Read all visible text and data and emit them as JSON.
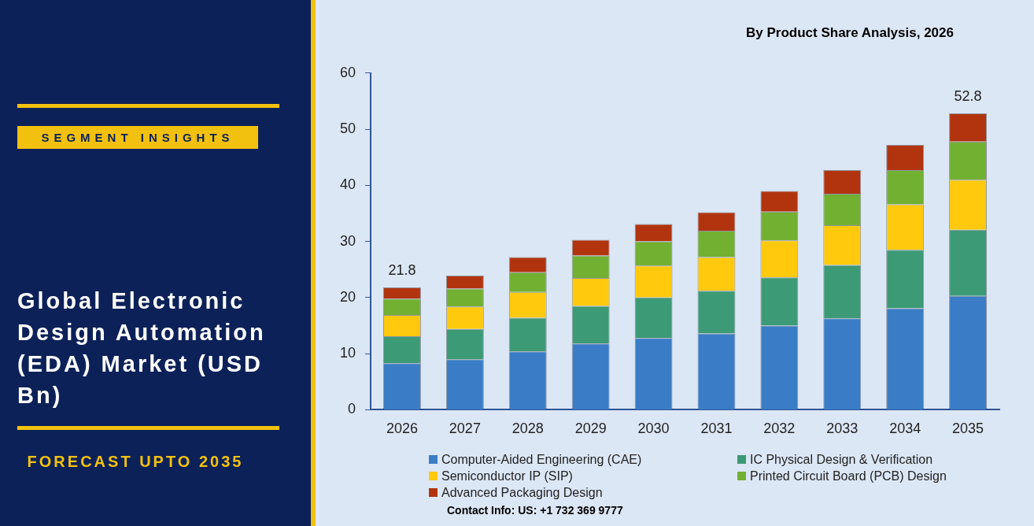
{
  "chart_data": {
    "type": "bar",
    "title": "Global Electronic Design Automation (EDA) Market (USD Bn)",
    "subtitle": "By Product Share Analysis, 2026",
    "categories": [
      "2026",
      "2027",
      "2028",
      "2029",
      "2030",
      "2031",
      "2032",
      "2033",
      "2034",
      "2035"
    ],
    "stacked": true,
    "series": [
      {
        "name": "Computer-Aided Engineering (CAE)",
        "color": "#3a7cc6",
        "values": [
          8.3,
          9.0,
          10.4,
          11.8,
          12.8,
          13.6,
          15.0,
          16.3,
          18.1,
          20.3
        ]
      },
      {
        "name": "IC Physical Design & Verification",
        "color": "#3d9a76",
        "values": [
          4.8,
          5.4,
          6.0,
          6.7,
          7.2,
          7.6,
          8.6,
          9.5,
          10.4,
          11.8
        ]
      },
      {
        "name": "Semiconductor IP (SIP)",
        "color": "#ffc90e",
        "values": [
          3.8,
          4.0,
          4.6,
          5.0,
          5.7,
          6.0,
          6.6,
          7.1,
          8.1,
          8.9
        ]
      },
      {
        "name": "Printed Circuit Board (PCB) Design",
        "color": "#72b032",
        "values": [
          2.9,
          3.2,
          3.5,
          4.0,
          4.3,
          4.7,
          5.1,
          5.6,
          6.1,
          6.8
        ]
      },
      {
        "name": "Advanced Packaging Design",
        "color": "#b2340f",
        "values": [
          2.0,
          2.3,
          2.7,
          2.8,
          3.1,
          3.3,
          3.7,
          4.2,
          4.5,
          5.0
        ]
      }
    ],
    "totals": [
      "21.8",
      null,
      null,
      null,
      null,
      null,
      null,
      null,
      null,
      "52.8"
    ],
    "ylim": [
      0,
      60
    ],
    "yticks": [
      0,
      10,
      20,
      30,
      40,
      50,
      60
    ],
    "grid": false,
    "legend": "bottom",
    "annotations": [
      "SEGMENT INSIGHTS",
      "FORECAST UPTO 2035",
      "Contact Info: US: +1 732 369 9777"
    ]
  }
}
